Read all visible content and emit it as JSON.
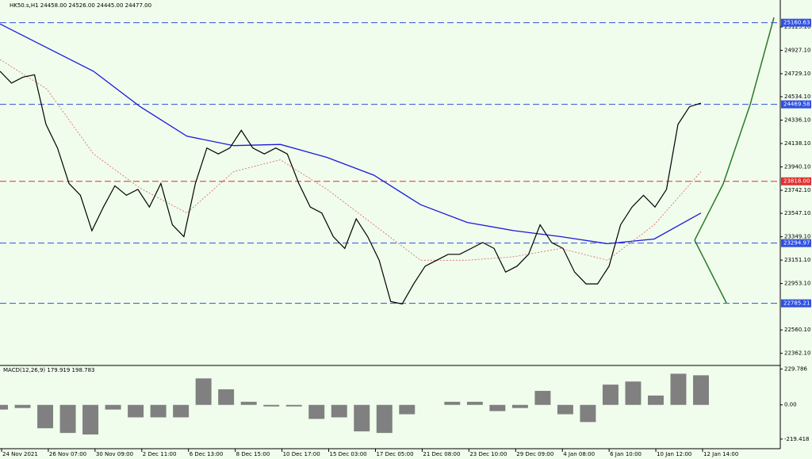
{
  "chart_data": [
    {
      "type": "line",
      "title": "HK50.s,H1 24458.00 24526.00 24445.00 24477.00",
      "categories": [
        "24 Nov 2021",
        "26 Nov 07:00",
        "30 Nov 09:00",
        "2 Dec 11:00",
        "6 Dec 13:00",
        "8 Dec 15:00",
        "10 Dec 17:00",
        "15 Dec 03:00",
        "17 Dec 05:00",
        "21 Dec 08:00",
        "23 Dec 10:00",
        "29 Dec 09:00",
        "4 Jan 08:00",
        "6 Jan 10:00",
        "10 Jan 12:00",
        "12 Jan 14:00"
      ],
      "price": {
        "color": "#000000",
        "values": [
          24750,
          24650,
          24700,
          24720,
          24300,
          24100,
          23800,
          23700,
          23400,
          23600,
          23780,
          23700,
          23750,
          23600,
          23800,
          23450,
          23350,
          23800,
          24100,
          24050,
          24100,
          24250,
          24100,
          24050,
          24100,
          24050,
          23800,
          23600,
          23550,
          23350,
          23250,
          23500,
          23350,
          23150,
          22800,
          22780,
          22950,
          23100,
          23150,
          23200,
          23200,
          23250,
          23300,
          23250,
          23050,
          23100,
          23200,
          23450,
          23300,
          23250,
          23050,
          22950,
          22950,
          23100,
          23450,
          23600,
          23700,
          23600,
          23750,
          24300,
          24450,
          24480
        ]
      },
      "series": [
        {
          "color": "#1a1adc",
          "values": [
            25150,
            24950,
            24750,
            24450,
            24200,
            24120,
            24130,
            24020,
            23870,
            23620,
            23470,
            23400,
            23350,
            23290,
            23330,
            23550
          ]
        },
        {
          "color": "#e06060",
          "values": [
            24850,
            24600,
            24050,
            23760,
            23550,
            23900,
            24000,
            23750,
            23450,
            23150,
            23150,
            23180,
            23250,
            23150,
            23450,
            23900
          ]
        }
      ],
      "levels": [
        {
          "value": 25160.63,
          "label": "25160.63",
          "color": "#3050e0"
        },
        {
          "value": 24469.58,
          "label": "24469.58",
          "color": "#3050e0"
        },
        {
          "value": 23818.0,
          "label": "23818.00",
          "color": "#e03030"
        },
        {
          "value": 23294.97,
          "label": "23294.97",
          "color": "#3050e0"
        },
        {
          "value": 22785.21,
          "label": "22785.21",
          "color": "#3050e0"
        }
      ],
      "ylim": [
        22266,
        25353
      ],
      "yticks": [
        {
          "value": 25125.1,
          "label": "25125.10"
        },
        {
          "value": 24927.1,
          "label": "24927.10"
        },
        {
          "value": 24729.1,
          "label": "24729.10"
        },
        {
          "value": 24534.1,
          "label": "24534.10"
        },
        {
          "value": 24336.1,
          "label": "24336.10"
        },
        {
          "value": 24138.1,
          "label": "24138.10"
        },
        {
          "value": 23940.1,
          "label": "23940.10"
        },
        {
          "value": 23742.1,
          "label": "23742.10"
        },
        {
          "value": 23547.1,
          "label": "23547.10"
        },
        {
          "value": 23349.1,
          "label": "23349.10"
        },
        {
          "value": 23151.1,
          "label": "23151.10"
        },
        {
          "value": 22953.1,
          "label": "22953.10"
        },
        {
          "value": 22560.1,
          "label": "22560.10"
        },
        {
          "value": 22362.1,
          "label": "22362.10"
        }
      ]
    },
    {
      "type": "bar",
      "title": "MACD(12,26,9) 179.919 198.783",
      "color": "#808080",
      "values": [
        -30,
        -20,
        -150,
        -180,
        -190,
        -30,
        -80,
        -80,
        -80,
        170,
        100,
        20,
        -10,
        -10,
        -90,
        -80,
        -170,
        -180,
        -60,
        0,
        20,
        20,
        -40,
        -20,
        90,
        -60,
        -110,
        130,
        150,
        60,
        200,
        190
      ],
      "ylim": [
        -276,
        248
      ],
      "yticks": [
        {
          "value": 229.786,
          "label": "229.786"
        },
        {
          "value": 0,
          "label": "0.00"
        },
        {
          "value": -219.418,
          "label": "-219.418"
        }
      ]
    }
  ]
}
